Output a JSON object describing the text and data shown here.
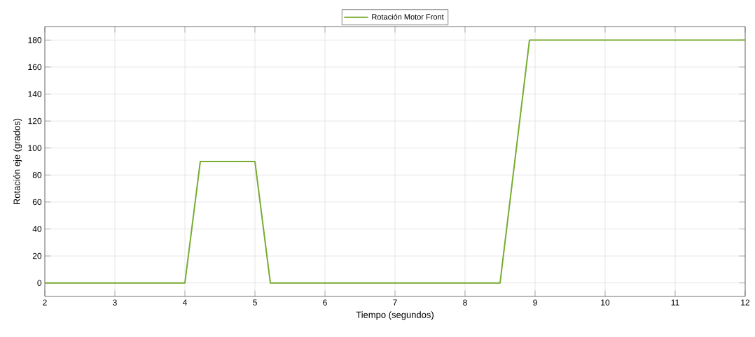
{
  "chart_data": {
    "type": "line",
    "xlabel": "Tiempo (segundos)",
    "ylabel": "Rotación eje (grados)",
    "xlim": [
      2,
      12
    ],
    "ylim": [
      -10,
      190
    ],
    "xticks": [
      2,
      3,
      4,
      5,
      6,
      7,
      8,
      9,
      10,
      11,
      12
    ],
    "yticks": [
      0,
      20,
      40,
      60,
      80,
      100,
      120,
      140,
      160,
      180
    ],
    "grid": true,
    "legend": "top",
    "marker": "none",
    "line_style": "solid",
    "series": [
      {
        "name": "Rotación Motor Front",
        "color": "#77ac30",
        "x": [
          2,
          4,
          4.22,
          5,
          5.22,
          8.5,
          8.92,
          12
        ],
        "values": [
          0,
          0,
          90,
          90,
          0,
          0,
          180,
          180
        ]
      }
    ]
  }
}
